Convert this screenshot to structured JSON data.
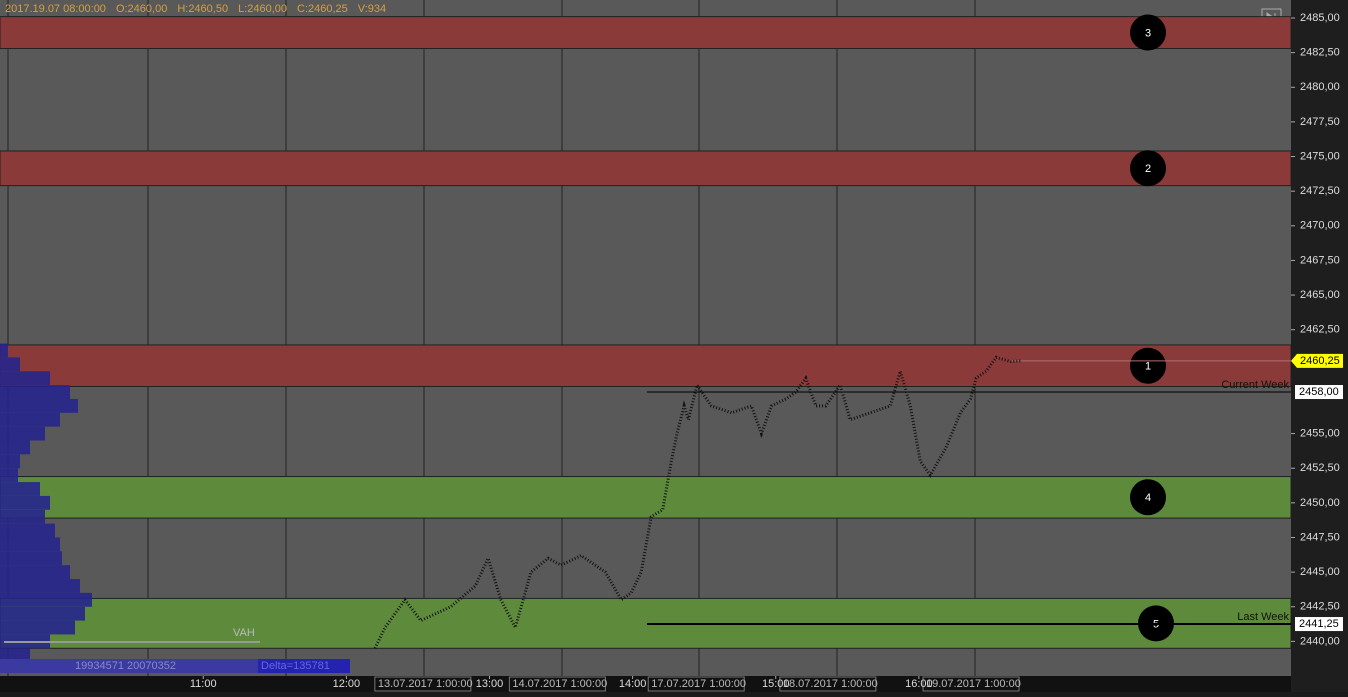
{
  "chart_data": {
    "type": "price-chart",
    "header": [
      "2017.19.07 08:00:00",
      "O:2460,00",
      "H:2460,50",
      "L:2460,00",
      "C:2460,25",
      "V:934"
    ],
    "xlim": [
      9.58,
      18.6
    ],
    "ylim": [
      2437.5,
      2486.3
    ],
    "yticks": [
      {
        "value": 2485,
        "label": "2485,00"
      },
      {
        "value": 2482.5,
        "label": "2482,50"
      },
      {
        "value": 2480,
        "label": "2480,00"
      },
      {
        "value": 2477.5,
        "label": "2477,50"
      },
      {
        "value": 2475,
        "label": "2475,00"
      },
      {
        "value": 2472.5,
        "label": "2472,50"
      },
      {
        "value": 2470,
        "label": "2470,00"
      },
      {
        "value": 2467.5,
        "label": "2467,50"
      },
      {
        "value": 2465,
        "label": "2465,00"
      },
      {
        "value": 2462.5,
        "label": "2462,50"
      },
      {
        "value": 2455,
        "label": "2455,00"
      },
      {
        "value": 2452.5,
        "label": "2452,50"
      },
      {
        "value": 2450,
        "label": "2450,00"
      },
      {
        "value": 2447.5,
        "label": "2447,50"
      },
      {
        "value": 2445,
        "label": "2445,00"
      },
      {
        "value": 2442.5,
        "label": "2442,50"
      },
      {
        "value": 2440,
        "label": "2440,00"
      }
    ],
    "xticks": [
      {
        "value": 11,
        "label": "11:00"
      },
      {
        "value": 12,
        "label": "12:00"
      },
      {
        "value": 13,
        "label": "13:00"
      },
      {
        "value": 14,
        "label": "14:00"
      },
      {
        "value": 15,
        "label": "15:00"
      },
      {
        "value": 16,
        "label": "16:00"
      }
    ],
    "session_marks": [
      {
        "value": 12.22,
        "label": "13.07.2017 1:00:00"
      },
      {
        "value": 13.16,
        "label": "14.07.2017 1:00:00"
      },
      {
        "value": 14.13,
        "label": "17.07.2017 1:00:00"
      },
      {
        "value": 15.05,
        "label": "18.07.2017 1:00:00"
      },
      {
        "value": 16.05,
        "label": "19.07.2017 1:00:00"
      }
    ],
    "zones": [
      {
        "label": "3",
        "from": 2485.1,
        "to": 2482.8,
        "color": "#8b3a3a"
      },
      {
        "label": "2",
        "from": 2475.4,
        "to": 2472.9,
        "color": "#8b3a3a"
      },
      {
        "label": "1",
        "from": 2461.4,
        "to": 2458.4,
        "color": "#8b3a3a"
      },
      {
        "label": "4",
        "from": 2451.9,
        "to": 2448.9,
        "color": "#5e8a3c"
      },
      {
        "label": "5",
        "from": 2443.1,
        "to": 2439.5,
        "color": "#5e8a3c"
      }
    ],
    "levels": [
      {
        "name": "Current Week",
        "value": 2458,
        "label": "2458,00",
        "start": 14.1
      },
      {
        "name": "Last Week",
        "value": 2441.25,
        "label": "2441,25",
        "start": 14.1
      }
    ],
    "last_price": {
      "value": 2460.25,
      "label": "2460,25",
      "color": "#ffff00"
    },
    "series": [
      {
        "name": "Price",
        "color": "#111111",
        "x": [
          12.2,
          12.27,
          12.41,
          12.52,
          12.73,
          12.9,
          12.99,
          13.08,
          13.18,
          13.29,
          13.41,
          13.5,
          13.64,
          13.81,
          13.92,
          13.99,
          14.06,
          14.13,
          14.21,
          14.27,
          14.31,
          14.36,
          14.39,
          14.45,
          14.55,
          14.69,
          14.83,
          14.9,
          14.97,
          15.07,
          15.14,
          15.21,
          15.28,
          15.35,
          15.45,
          15.52,
          15.66,
          15.8,
          15.87,
          15.94,
          16.01,
          16.08,
          16.19,
          16.29,
          16.36,
          16.4,
          16.47,
          16.54,
          16.64,
          16.71
        ],
        "values": [
          2439.5,
          2441,
          2443,
          2441.5,
          2442.5,
          2444,
          2446,
          2443,
          2441,
          2445,
          2446,
          2445.5,
          2446.2,
          2445,
          2443,
          2443.5,
          2445,
          2449,
          2449.5,
          2453,
          2455,
          2457,
          2456,
          2458.5,
          2457,
          2456.5,
          2457,
          2455,
          2457,
          2457.5,
          2458,
          2459,
          2457,
          2457,
          2458.5,
          2456,
          2456.5,
          2457,
          2459.5,
          2457,
          2453,
          2452,
          2454,
          2456.5,
          2457.5,
          2459,
          2459.5,
          2460.5,
          2460.2,
          2460.25
        ]
      }
    ],
    "profile": {
      "color": "#26268c",
      "xlim": [
        0,
        100
      ],
      "prices": [
        2461,
        2460,
        2459,
        2458,
        2457,
        2456,
        2455,
        2454,
        2453,
        2452,
        2451,
        2450,
        2449,
        2448,
        2447,
        2446,
        2445,
        2444,
        2443,
        2442,
        2441,
        2440,
        2439
      ],
      "volumes": [
        8,
        20,
        50,
        70,
        78,
        60,
        45,
        30,
        20,
        18,
        40,
        50,
        45,
        55,
        60,
        62,
        70,
        80,
        92,
        85,
        75,
        50,
        30
      ]
    },
    "profile_texts": {
      "vah": "VAH",
      "volumes": "19934571 20070352",
      "delta": "Delta=135781"
    }
  }
}
